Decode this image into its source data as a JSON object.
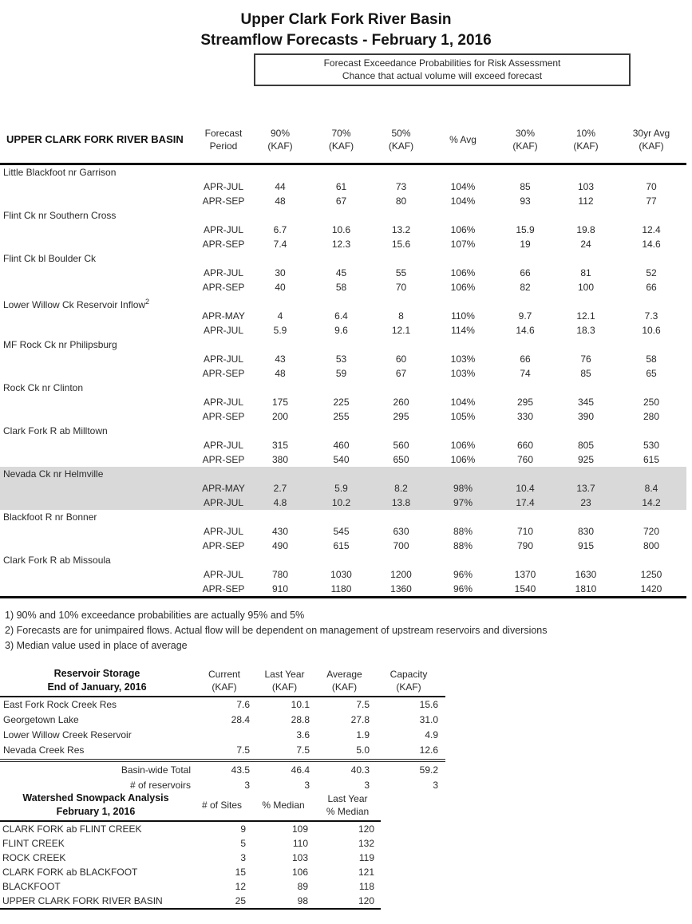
{
  "page": {
    "title": "Upper Clark Fork River Basin",
    "subtitle": "Streamflow Forecasts - February 1, 2016"
  },
  "risk_box": {
    "line1": "Forecast Exceedance Probabilities for Risk Assessment",
    "line2": "Chance that actual volume will exceed forecast"
  },
  "forecast_table": {
    "row_header": "UPPER CLARK FORK RIVER BASIN",
    "columns": [
      [
        "Forecast",
        "Period"
      ],
      [
        "90%",
        "(KAF)"
      ],
      [
        "70%",
        "(KAF)"
      ],
      [
        "50%",
        "(KAF)"
      ],
      [
        "% Avg"
      ],
      [
        "30%",
        "(KAF)"
      ],
      [
        "10%",
        "(KAF)"
      ],
      [
        "30yr Avg",
        "(KAF)"
      ]
    ],
    "sites": [
      {
        "name": "Little Blackfoot nr Garrison",
        "rows": [
          [
            "APR-JUL",
            "44",
            "61",
            "73",
            "104%",
            "85",
            "103",
            "70"
          ],
          [
            "APR-SEP",
            "48",
            "67",
            "80",
            "104%",
            "93",
            "112",
            "77"
          ]
        ]
      },
      {
        "name": "Flint Ck nr Southern Cross",
        "rows": [
          [
            "APR-JUL",
            "6.7",
            "10.6",
            "13.2",
            "106%",
            "15.9",
            "19.8",
            "12.4"
          ],
          [
            "APR-SEP",
            "7.4",
            "12.3",
            "15.6",
            "107%",
            "19",
            "24",
            "14.6"
          ]
        ]
      },
      {
        "name": "Flint Ck bl Boulder Ck",
        "rows": [
          [
            "APR-JUL",
            "30",
            "45",
            "55",
            "106%",
            "66",
            "81",
            "52"
          ],
          [
            "APR-SEP",
            "40",
            "58",
            "70",
            "106%",
            "82",
            "100",
            "66"
          ]
        ]
      },
      {
        "name": "Lower Willow Ck Reservoir Inflow",
        "footnote_ref": "2",
        "rows": [
          [
            "APR-MAY",
            "4",
            "6.4",
            "8",
            "110%",
            "9.7",
            "12.1",
            "7.3"
          ],
          [
            "APR-JUL",
            "5.9",
            "9.6",
            "12.1",
            "114%",
            "14.6",
            "18.3",
            "10.6"
          ]
        ]
      },
      {
        "name": "MF Rock Ck nr Philipsburg",
        "rows": [
          [
            "APR-JUL",
            "43",
            "53",
            "60",
            "103%",
            "66",
            "76",
            "58"
          ],
          [
            "APR-SEP",
            "48",
            "59",
            "67",
            "103%",
            "74",
            "85",
            "65"
          ]
        ]
      },
      {
        "name": "Rock Ck nr Clinton",
        "rows": [
          [
            "APR-JUL",
            "175",
            "225",
            "260",
            "104%",
            "295",
            "345",
            "250"
          ],
          [
            "APR-SEP",
            "200",
            "255",
            "295",
            "105%",
            "330",
            "390",
            "280"
          ]
        ]
      },
      {
        "name": "Clark Fork R ab Milltown",
        "rows": [
          [
            "APR-JUL",
            "315",
            "460",
            "560",
            "106%",
            "660",
            "805",
            "530"
          ],
          [
            "APR-SEP",
            "380",
            "540",
            "650",
            "106%",
            "760",
            "925",
            "615"
          ]
        ]
      },
      {
        "name": "Nevada Ck nr Helmville",
        "highlight": true,
        "rows": [
          [
            "APR-MAY",
            "2.7",
            "5.9",
            "8.2",
            "98%",
            "10.4",
            "13.7",
            "8.4"
          ],
          [
            "APR-JUL",
            "4.8",
            "10.2",
            "13.8",
            "97%",
            "17.4",
            "23",
            "14.2"
          ]
        ]
      },
      {
        "name": "Blackfoot R nr Bonner",
        "rows": [
          [
            "APR-JUL",
            "430",
            "545",
            "630",
            "88%",
            "710",
            "830",
            "720"
          ],
          [
            "APR-SEP",
            "490",
            "615",
            "700",
            "88%",
            "790",
            "915",
            "800"
          ]
        ]
      },
      {
        "name": "Clark Fork R ab Missoula",
        "rows": [
          [
            "APR-JUL",
            "780",
            "1030",
            "1200",
            "96%",
            "1370",
            "1630",
            "1250"
          ],
          [
            "APR-SEP",
            "910",
            "1180",
            "1360",
            "96%",
            "1540",
            "1810",
            "1420"
          ]
        ]
      }
    ]
  },
  "footnotes": [
    "1) 90% and 10% exceedance probabilities are actually 95% and 5%",
    "2) Forecasts are for unimpaired flows.  Actual flow will be dependent on management of upstream reservoirs and diversions",
    "3) Median value used in place of average"
  ],
  "reservoir_table": {
    "title_line1": "Reservoir Storage",
    "title_line2": "End of January, 2016",
    "columns": [
      [
        "Current",
        "(KAF)"
      ],
      [
        "Last Year",
        "(KAF)"
      ],
      [
        "Average",
        "(KAF)"
      ],
      [
        "Capacity",
        "(KAF)"
      ]
    ],
    "rows": [
      {
        "name": "East Fork Rock Creek Res",
        "values": [
          "7.6",
          "10.1",
          "7.5",
          "15.6"
        ]
      },
      {
        "name": "Georgetown Lake",
        "values": [
          "28.4",
          "28.8",
          "27.8",
          "31.0"
        ]
      },
      {
        "name": "Lower Willow Creek Reservoir",
        "values": [
          "",
          "3.6",
          "1.9",
          "4.9"
        ]
      },
      {
        "name": "Nevada Creek Res",
        "values": [
          "7.5",
          "7.5",
          "5.0",
          "12.6"
        ]
      }
    ],
    "summary_rows": [
      {
        "name": "Basin-wide Total",
        "values": [
          "43.5",
          "46.4",
          "40.3",
          "59.2"
        ]
      },
      {
        "name": "# of reservoirs",
        "values": [
          "3",
          "3",
          "3",
          "3"
        ]
      }
    ]
  },
  "snowpack_table": {
    "title_line1": "Watershed Snowpack Analysis",
    "title_line2": "February 1, 2016",
    "columns": [
      [
        "# of Sites"
      ],
      [
        "% Median"
      ],
      [
        "Last Year",
        "% Median"
      ]
    ],
    "rows": [
      {
        "name": "CLARK FORK ab FLINT CREEK",
        "values": [
          "9",
          "109",
          "120"
        ]
      },
      {
        "name": "FLINT CREEK",
        "values": [
          "5",
          "110",
          "132"
        ]
      },
      {
        "name": "ROCK CREEK",
        "values": [
          "3",
          "103",
          "119"
        ]
      },
      {
        "name": "CLARK FORK ab BLACKFOOT",
        "values": [
          "15",
          "106",
          "121"
        ]
      },
      {
        "name": "BLACKFOOT",
        "values": [
          "12",
          "89",
          "118"
        ]
      },
      {
        "name": "UPPER CLARK FORK RIVER BASIN",
        "values": [
          "25",
          "98",
          "120"
        ]
      }
    ]
  },
  "colors": {
    "highlight_band": "#d9d9d9",
    "text": "#1c1c1c",
    "rule": "#0d0d0d"
  }
}
